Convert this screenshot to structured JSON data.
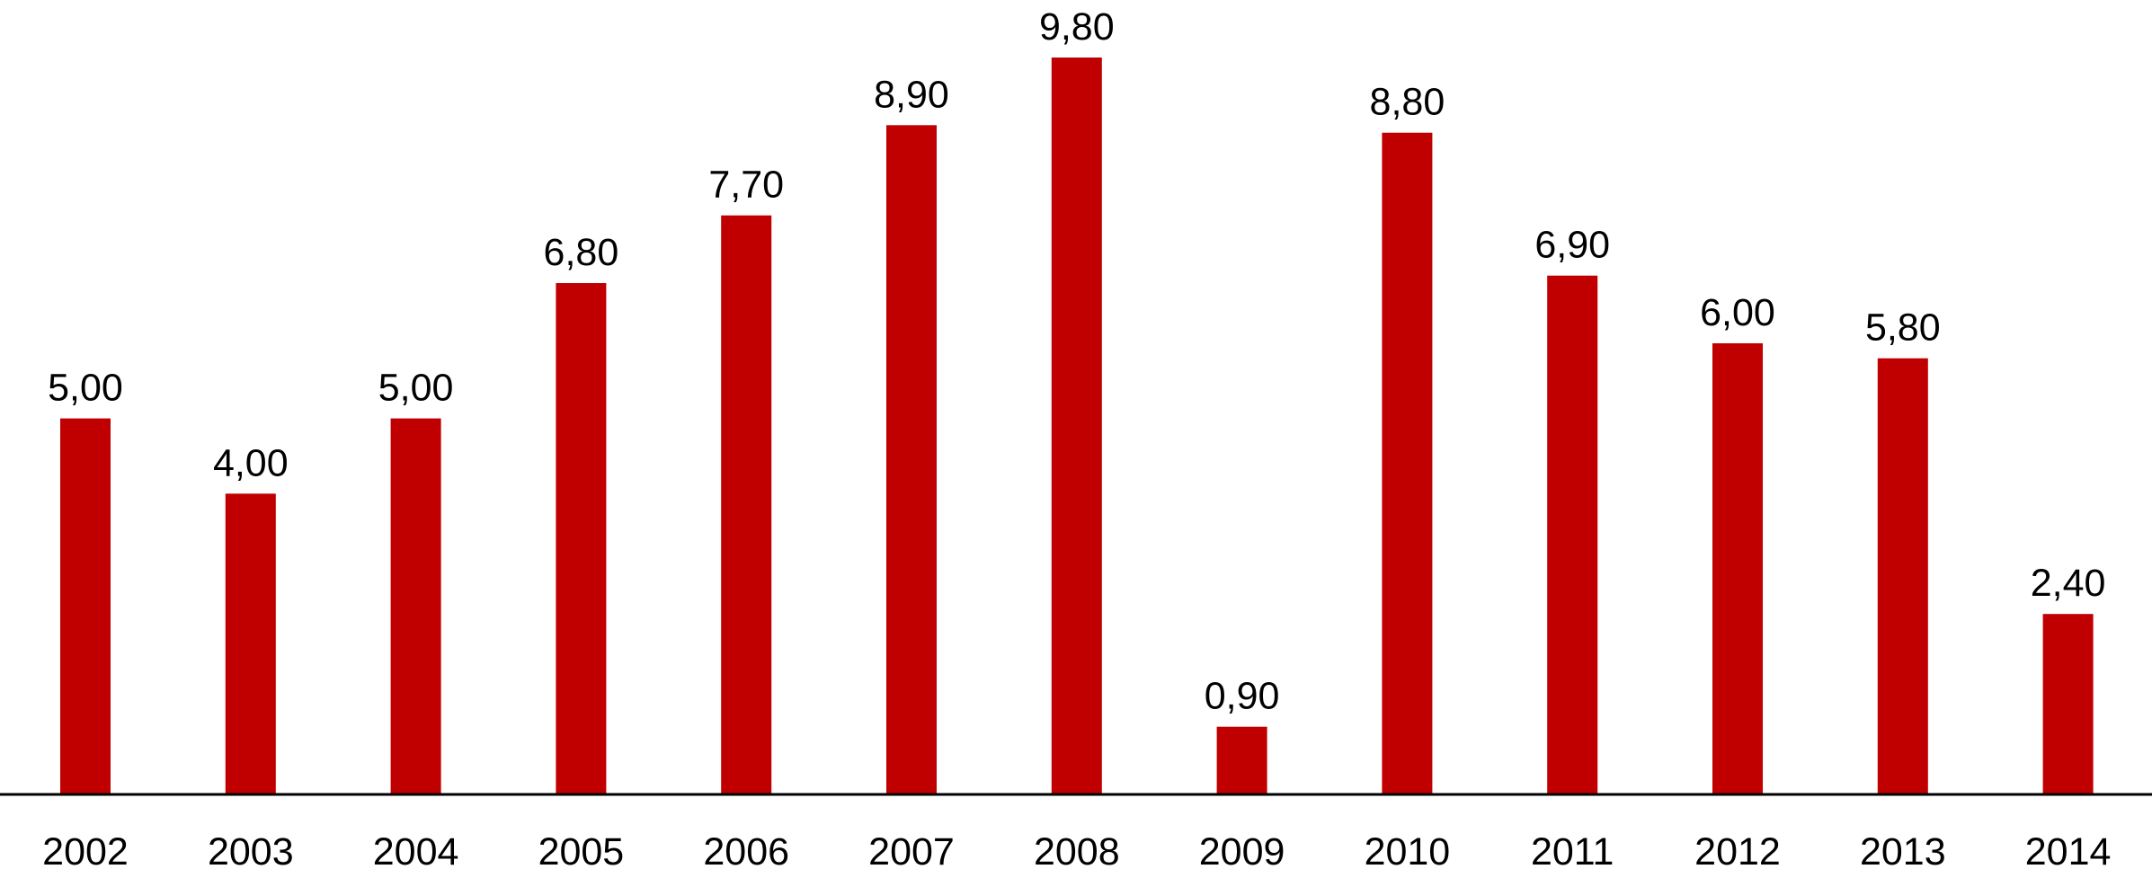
{
  "chart_data": {
    "type": "bar",
    "categories": [
      "2002",
      "2003",
      "2004",
      "2005",
      "2006",
      "2007",
      "2008",
      "2009",
      "2010",
      "2011",
      "2012",
      "2013",
      "2014"
    ],
    "values": [
      5.0,
      4.0,
      5.0,
      6.8,
      7.7,
      8.9,
      9.8,
      0.9,
      8.8,
      6.9,
      6.0,
      5.8,
      2.4
    ],
    "value_labels": [
      "5,00",
      "4,00",
      "5,00",
      "6,80",
      "7,70",
      "8,90",
      "9,80",
      "0,90",
      "8,80",
      "6,90",
      "6,00",
      "5,80",
      "2,40"
    ],
    "title": "",
    "xlabel": "",
    "ylabel": "",
    "ylim": [
      0,
      9.8
    ],
    "grid": false,
    "bar_color": "#c00000",
    "axis_color": "#000000"
  }
}
